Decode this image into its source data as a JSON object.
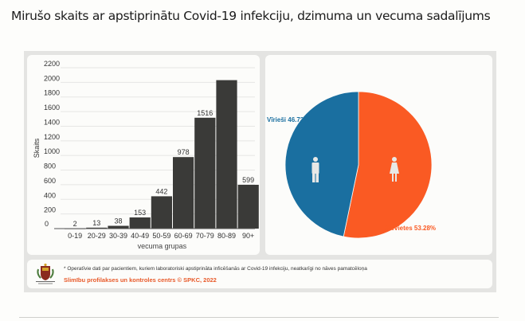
{
  "page": {
    "title": "Mirušo skaits ar apstiprinātu Covid-19 infekciju, dzimuma un vecuma sadalījums"
  },
  "footer": {
    "note": "* Operatīvie dati par pacientiem, kuriem laboratoriski apstiprināta inficēšanās ar Covid-19 infekciju, neatkarīgi no nāves pamatcēloņa",
    "credit": "Slimību profilakses un kontroles centrs © SPKC, 2022",
    "logo": "spkc-coat-of-arms-logo"
  },
  "colors": {
    "bar": "#3a3a38",
    "male": "#1a6fa0",
    "female": "#fa5a23",
    "credit": "#e85a2a"
  },
  "chart_data": [
    {
      "type": "bar",
      "title": "",
      "xlabel": "vecuma grupas",
      "ylabel": "Skaits",
      "ylim": [
        0,
        2200
      ],
      "yticks": [
        0,
        200,
        400,
        600,
        800,
        1000,
        1200,
        1400,
        1600,
        1800,
        2000,
        2200
      ],
      "grid": true,
      "categories": [
        "0-19",
        "20-29",
        "30-39",
        "40-49",
        "50-59",
        "60-69",
        "70-79",
        "80-89",
        "90+"
      ],
      "values": [
        2,
        13,
        38,
        153,
        442,
        978,
        1516,
        2030,
        599
      ],
      "labels": [
        "2",
        "13",
        "38",
        "153",
        "442",
        "978",
        "1516",
        "",
        "599"
      ],
      "zero_label": "0"
    },
    {
      "type": "pie",
      "title": "",
      "slices": [
        {
          "name": "Vīrieši",
          "value": 46.72,
          "label": "Vīrieši 46.72%",
          "color": "#1a6fa0",
          "icon": "male-person-icon"
        },
        {
          "name": "Sievietes",
          "value": 53.28,
          "label": "Sievietes 53.28%",
          "color": "#fa5a23",
          "icon": "female-person-icon"
        }
      ]
    }
  ]
}
